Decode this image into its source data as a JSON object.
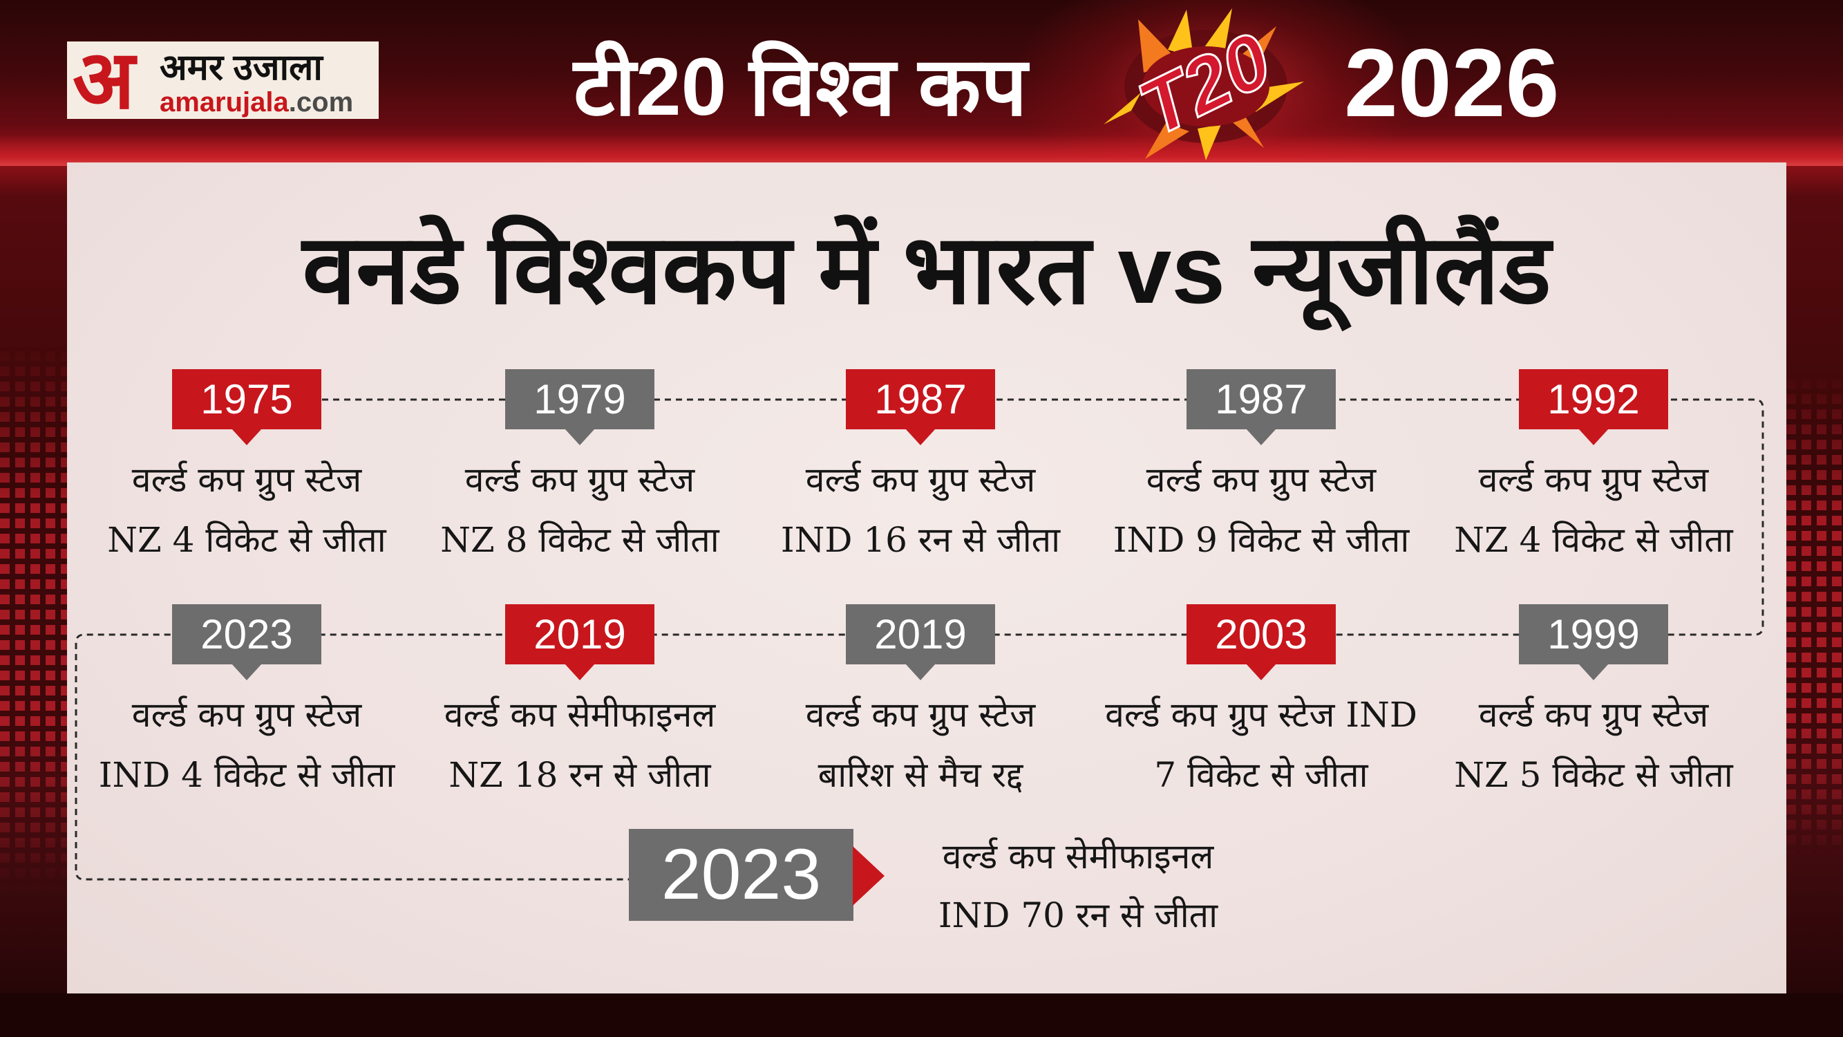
{
  "header": {
    "logo": {
      "mark": "अ",
      "name": "अमर उजाला",
      "domain": "amarujala",
      "tld": ".com"
    },
    "title": "टी20 विश्व कप",
    "event_logo": {
      "icon": "t20-world-cup-logo",
      "text": "T20"
    },
    "year": "2026"
  },
  "colors": {
    "red": "#c8161d",
    "gray": "#6d6d6d",
    "panel": "#efe3e1",
    "header_bg": "#3a0809"
  },
  "main_title": "वनडे विश्वकप में भारत vs न्यूजीलैंड",
  "matches": {
    "row1": [
      {
        "year": "1975",
        "color": "#c8161d",
        "stage": "वर्ल्ड कप ग्रुप स्टेज",
        "result": "NZ 4 विकेट से जीता"
      },
      {
        "year": "1979",
        "color": "#6d6d6d",
        "stage": "वर्ल्ड कप ग्रुप स्टेज",
        "result": "NZ 8 विकेट से जीता"
      },
      {
        "year": "1987",
        "color": "#c8161d",
        "stage": "वर्ल्ड कप ग्रुप स्टेज",
        "result": "IND 16 रन से जीता"
      },
      {
        "year": "1987",
        "color": "#6d6d6d",
        "stage": "वर्ल्ड कप ग्रुप स्टेज",
        "result": "IND 9 विकेट से जीता"
      },
      {
        "year": "1992",
        "color": "#c8161d",
        "stage": "वर्ल्ड कप ग्रुप स्टेज",
        "result": "NZ 4 विकेट से जीता"
      }
    ],
    "row2": [
      {
        "year": "2023",
        "color": "#6d6d6d",
        "stage": "वर्ल्ड कप ग्रुप स्टेज",
        "result": "IND 4 विकेट से जीता"
      },
      {
        "year": "2019",
        "color": "#c8161d",
        "stage": "वर्ल्ड कप सेमीफाइनल",
        "result": "NZ 18 रन से जीता"
      },
      {
        "year": "2019",
        "color": "#6d6d6d",
        "stage": "वर्ल्ड कप ग्रुप स्टेज",
        "result": "बारिश से मैच रद्द"
      },
      {
        "year": "2003",
        "color": "#c8161d",
        "stage": "वर्ल्ड कप ग्रुप स्टेज IND",
        "result": "7 विकेट से जीता"
      },
      {
        "year": "1999",
        "color": "#6d6d6d",
        "stage": "वर्ल्ड कप ग्रुप स्टेज",
        "result": "NZ 5 विकेट से जीता"
      }
    ],
    "final": {
      "year": "2023",
      "color": "#6d6d6d",
      "arrow_color": "#c8161d",
      "stage": "वर्ल्ड कप सेमीफाइनल",
      "result": "IND 70 रन से जीता"
    }
  }
}
